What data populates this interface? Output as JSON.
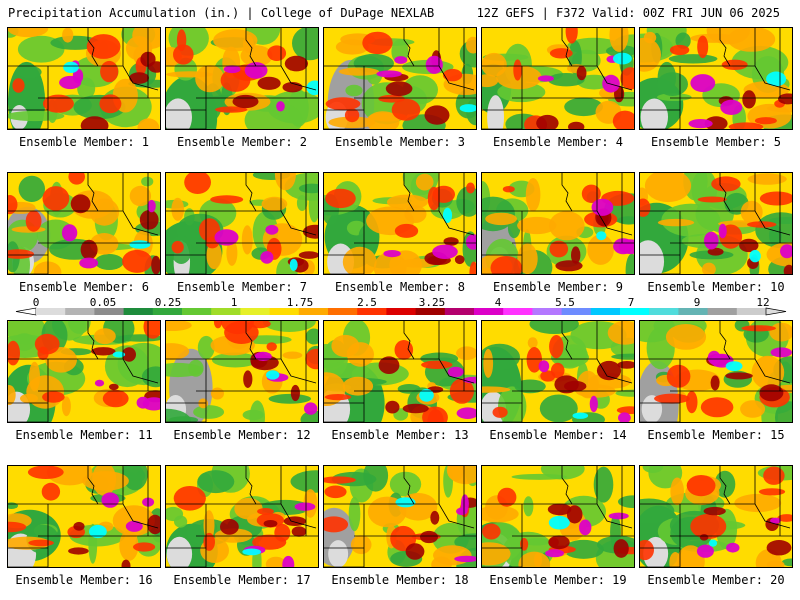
{
  "header": {
    "left_title": "Precipitation Accumulation (in.) | College of DuPage NEXLAB",
    "right_title": "12Z GEFS | F372 Valid: 00Z FRI JUN 06 2025"
  },
  "panel_label_prefix": "Ensemble Member: ",
  "members": [
    1,
    2,
    3,
    4,
    5,
    6,
    7,
    8,
    9,
    10,
    11,
    12,
    13,
    14,
    15,
    16,
    17,
    18,
    19,
    20
  ],
  "colorbar": {
    "tick_labels": [
      "0",
      "0.05",
      "0.25",
      "1",
      "1.75",
      "2.5",
      "3.25",
      "4",
      "5.5",
      "7",
      "9",
      "12"
    ],
    "colors": [
      "#dcdcdc",
      "#b4b4b4",
      "#8c8c8c",
      "#1e8c3c",
      "#32a83c",
      "#64c832",
      "#a0dc28",
      "#e6f028",
      "#ffdc00",
      "#ffaa00",
      "#ff6e00",
      "#ff3200",
      "#dc0000",
      "#a00000",
      "#b4006e",
      "#dc00c8",
      "#ff32ff",
      "#b478ff",
      "#6e8cff",
      "#00c8ff",
      "#00ffff",
      "#50dcdc",
      "#64b4b4",
      "#a0a0a0",
      "#cccccc"
    ]
  },
  "map_colors": {
    "light_gray": "#dcdcdc",
    "gray": "#a0a0a0",
    "dark_green": "#1e8c3c",
    "green": "#32a83c",
    "light_green": "#64c832",
    "yellow_green": "#a0dc28",
    "yellow": "#ffdc00",
    "orange": "#ffaa00",
    "red": "#ff3200",
    "dark_red": "#a00000",
    "magenta": "#dc00c8",
    "cyan": "#00ffff"
  }
}
